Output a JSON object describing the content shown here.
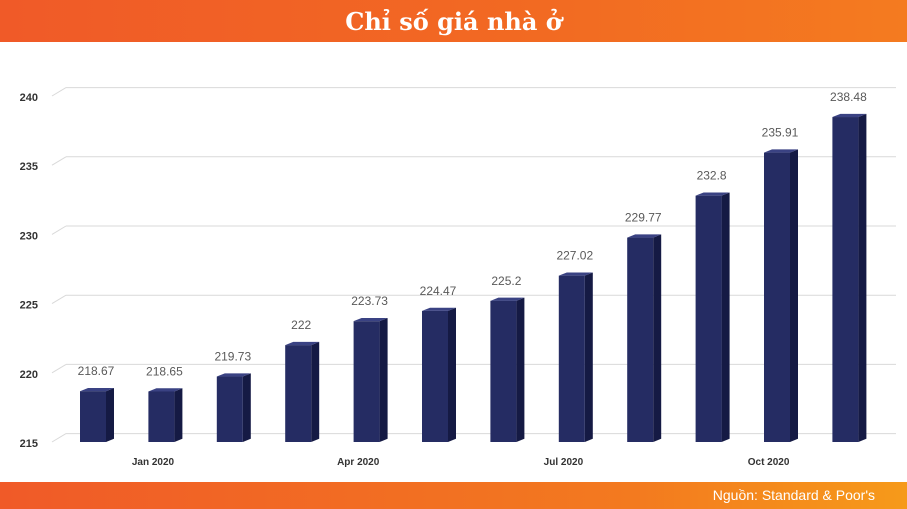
{
  "title": "Chỉ số giá nhà ở",
  "source": "Nguồn: Standard & Poor's",
  "colors": {
    "header": "#f26a22",
    "bar_front": "#252c63",
    "bar_side": "#151a44",
    "bar_top": "#3a4283",
    "grid": "#d9d9d9",
    "label": "#595959"
  },
  "chart_data": {
    "type": "bar",
    "categories": [
      "Jan 2020",
      "",
      "",
      "Apr 2020",
      "",
      "",
      "Jul 2020",
      "",
      "",
      "Oct 2020",
      "",
      ""
    ],
    "values": [
      218.67,
      218.65,
      219.73,
      222,
      223.73,
      224.47,
      225.2,
      227.02,
      229.77,
      232.8,
      235.91,
      238.48
    ],
    "data_labels": [
      "218.67",
      "218.65",
      "219.73",
      "222",
      "223.73",
      "224.47",
      "225.2",
      "227.02",
      "229.77",
      "232.8",
      "235.91",
      "238.48"
    ],
    "yticks": [
      215,
      220,
      225,
      230,
      235,
      240
    ],
    "ylim": [
      215,
      240
    ],
    "grid": true,
    "legend": "none",
    "title": "",
    "xlabel": "",
    "ylabel": ""
  }
}
